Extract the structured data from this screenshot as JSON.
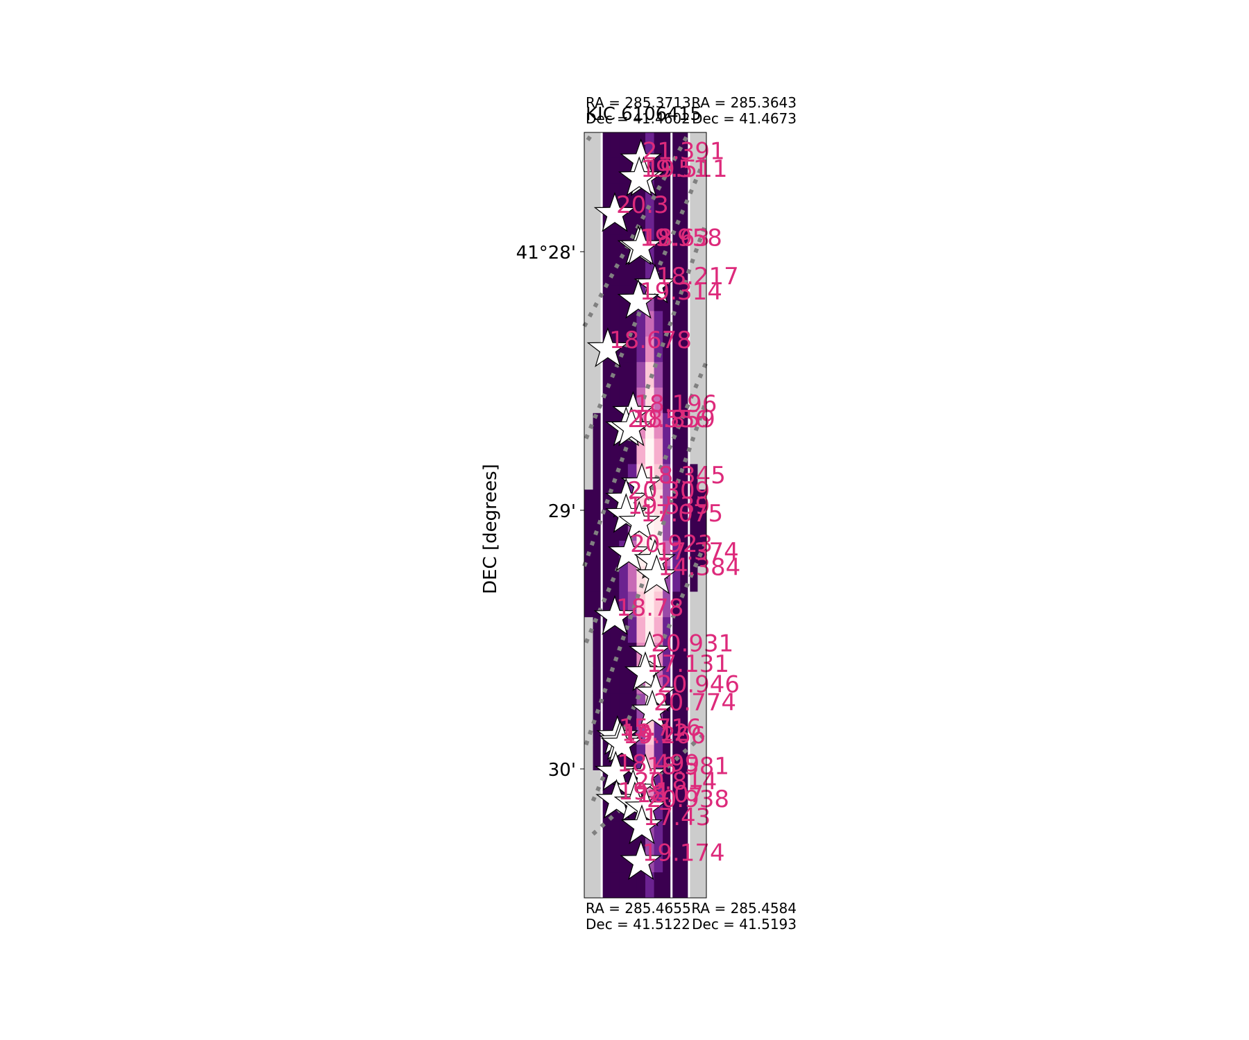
{
  "chart_data": {
    "type": "scatter",
    "title": "KIC 6106415",
    "ylabel": "DEC [degrees]",
    "y_ticks": [
      "41°28'",
      "29'",
      "30'"
    ],
    "corners": {
      "top_left": [
        "RA = 285.3713",
        "Dec = 41.4602"
      ],
      "top_right": [
        "RA = 285.3643",
        "Dec = 41.4673"
      ],
      "bottom_left": [
        "RA = 285.4655",
        "Dec = 41.5122"
      ],
      "bottom_right": [
        "RA = 285.4584",
        "Dec = 41.5193"
      ]
    },
    "colors": {
      "label": "#dd2a7b",
      "background": "#3b0050",
      "masked": "#cccccc",
      "aperture": "#808080"
    },
    "pixels": {
      "cols": 14,
      "rows": 30,
      "masked_value": -1,
      "grid": [
        [
          -1,
          -1,
          0,
          0,
          0,
          0,
          0,
          1,
          0,
          0,
          0,
          0,
          -1,
          -1
        ],
        [
          -1,
          -1,
          0,
          0,
          0,
          0,
          0,
          1,
          0,
          0,
          0,
          0,
          -1,
          -1
        ],
        [
          -1,
          -1,
          0,
          0,
          0,
          0,
          0,
          1,
          0,
          0,
          0,
          0,
          -1,
          -1
        ],
        [
          -1,
          -1,
          0,
          0,
          0,
          0,
          0,
          1,
          0,
          0,
          0,
          0,
          -1,
          -1
        ],
        [
          -1,
          -1,
          0,
          0,
          0,
          0,
          0,
          1,
          0,
          0,
          0,
          0,
          -1,
          -1
        ],
        [
          -1,
          -1,
          0,
          0,
          0,
          0,
          0,
          1,
          0,
          0,
          0,
          0,
          -1,
          -1
        ],
        [
          -1,
          -1,
          0,
          0,
          0,
          0,
          1,
          2,
          0,
          0,
          0,
          0,
          -1,
          -1
        ],
        [
          -1,
          -1,
          0,
          0,
          0,
          0,
          1,
          3,
          1,
          0,
          0,
          0,
          -1,
          -1
        ],
        [
          -1,
          -1,
          0,
          0,
          0,
          0,
          1,
          4,
          1,
          0,
          0,
          0,
          -1,
          -1
        ],
        [
          -1,
          -1,
          0,
          0,
          0,
          0,
          2,
          6,
          2,
          0,
          0,
          0,
          -1,
          -1
        ],
        [
          -1,
          -1,
          0,
          0,
          0,
          0,
          3,
          7,
          3,
          0,
          0,
          0,
          -1,
          -1
        ],
        [
          -1,
          0,
          0,
          0,
          0,
          0,
          4,
          8,
          4,
          1,
          0,
          0,
          -1,
          -1
        ],
        [
          -1,
          0,
          0,
          0,
          0,
          0,
          5,
          9,
          5,
          1,
          0,
          0,
          -1,
          -1
        ],
        [
          -1,
          0,
          0,
          0,
          0,
          1,
          6,
          9,
          6,
          2,
          0,
          0,
          0,
          -1
        ],
        [
          0,
          0,
          0,
          0,
          0,
          1,
          7,
          9,
          7,
          2,
          0,
          0,
          0,
          0
        ],
        [
          0,
          0,
          0,
          0,
          0,
          2,
          8,
          9,
          8,
          2,
          0,
          0,
          0,
          0
        ],
        [
          0,
          0,
          0,
          0,
          1,
          3,
          8,
          9,
          8,
          3,
          1,
          0,
          0,
          0
        ],
        [
          0,
          0,
          0,
          0,
          1,
          3,
          7,
          8,
          7,
          2,
          1,
          0,
          0,
          -1
        ],
        [
          0,
          0,
          0,
          0,
          1,
          2,
          6,
          8,
          6,
          2,
          0,
          0,
          -1,
          -1
        ],
        [
          -1,
          0,
          0,
          0,
          0,
          1,
          5,
          8,
          5,
          1,
          0,
          0,
          -1,
          -1
        ],
        [
          -1,
          0,
          0,
          0,
          0,
          0,
          4,
          8,
          4,
          1,
          0,
          0,
          -1,
          -1
        ],
        [
          -1,
          0,
          0,
          0,
          0,
          0,
          3,
          8,
          3,
          1,
          0,
          0,
          -1,
          -1
        ],
        [
          -1,
          0,
          0,
          0,
          0,
          0,
          2,
          7,
          2,
          0,
          0,
          0,
          -1,
          -1
        ],
        [
          -1,
          0,
          0,
          0,
          0,
          0,
          2,
          6,
          1,
          0,
          0,
          0,
          -1,
          -1
        ],
        [
          -1,
          0,
          0,
          0,
          0,
          0,
          1,
          5,
          1,
          0,
          0,
          0,
          -1,
          -1
        ],
        [
          -1,
          -1,
          0,
          0,
          0,
          0,
          1,
          4,
          1,
          0,
          0,
          0,
          -1,
          -1
        ],
        [
          -1,
          -1,
          0,
          0,
          0,
          0,
          1,
          3,
          1,
          0,
          0,
          0,
          -1,
          -1
        ],
        [
          -1,
          -1,
          0,
          0,
          0,
          0,
          0,
          2,
          1,
          0,
          0,
          0,
          -1,
          -1
        ],
        [
          -1,
          -1,
          0,
          0,
          0,
          0,
          0,
          2,
          1,
          0,
          0,
          0,
          -1,
          -1
        ],
        [
          -1,
          -1,
          0,
          0,
          0,
          0,
          0,
          1,
          0,
          0,
          0,
          0,
          -1,
          -1
        ]
      ]
    },
    "stars": [
      {
        "col": 6.5,
        "row": 1.1,
        "mag": "21.391"
      },
      {
        "col": 6.8,
        "row": 1.8,
        "mag": "19.511"
      },
      {
        "col": 6.3,
        "row": 1.8,
        "mag": "19.51"
      },
      {
        "col": 3.5,
        "row": 3.2,
        "mag": "20.3"
      },
      {
        "col": 6.2,
        "row": 4.5,
        "mag": "19.958"
      },
      {
        "col": 6.5,
        "row": 4.5,
        "mag": "18.63"
      },
      {
        "col": 8.1,
        "row": 6.0,
        "mag": "18.217"
      },
      {
        "col": 6.2,
        "row": 6.6,
        "mag": "19.314"
      },
      {
        "col": 2.7,
        "row": 8.5,
        "mag": "18.678"
      },
      {
        "col": 5.6,
        "row": 11.0,
        "mag": "18.196"
      },
      {
        "col": 4.8,
        "row": 11.6,
        "mag": "20.556"
      },
      {
        "col": 5.4,
        "row": 11.6,
        "mag": "18.859"
      },
      {
        "col": 6.6,
        "row": 13.8,
        "mag": "18.345"
      },
      {
        "col": 4.8,
        "row": 14.4,
        "mag": "20.309"
      },
      {
        "col": 4.8,
        "row": 15.0,
        "mag": "19.539"
      },
      {
        "col": 6.3,
        "row": 15.3,
        "mag": "17.075"
      },
      {
        "col": 5.1,
        "row": 16.5,
        "mag": "20.923"
      },
      {
        "col": 8.1,
        "row": 16.8,
        "mag": "17.374"
      },
      {
        "col": 8.3,
        "row": 17.4,
        "mag": "14.384"
      },
      {
        "col": 3.5,
        "row": 19.0,
        "mag": "18.78"
      },
      {
        "col": 7.5,
        "row": 20.4,
        "mag": "20.931"
      },
      {
        "col": 7.0,
        "row": 21.2,
        "mag": "17.131"
      },
      {
        "col": 8.2,
        "row": 22.0,
        "mag": "20.946"
      },
      {
        "col": 7.8,
        "row": 22.7,
        "mag": "20.774"
      },
      {
        "col": 3.8,
        "row": 23.7,
        "mag": "15.716"
      },
      {
        "col": 4.1,
        "row": 23.9,
        "mag": "18.12"
      },
      {
        "col": 4.3,
        "row": 24.0,
        "mag": "19.266"
      },
      {
        "col": 3.6,
        "row": 25.1,
        "mag": "18.499"
      },
      {
        "col": 7.0,
        "row": 25.2,
        "mag": "18.581"
      },
      {
        "col": 5.6,
        "row": 25.8,
        "mag": "20.814"
      },
      {
        "col": 3.7,
        "row": 26.2,
        "mag": "19.1"
      },
      {
        "col": 5.8,
        "row": 26.3,
        "mag": "18.07"
      },
      {
        "col": 7.0,
        "row": 26.5,
        "mag": "20.938"
      },
      {
        "col": 6.6,
        "row": 27.2,
        "mag": "17.43"
      },
      {
        "col": 6.5,
        "row": 28.6,
        "mag": "19.174"
      }
    ]
  }
}
